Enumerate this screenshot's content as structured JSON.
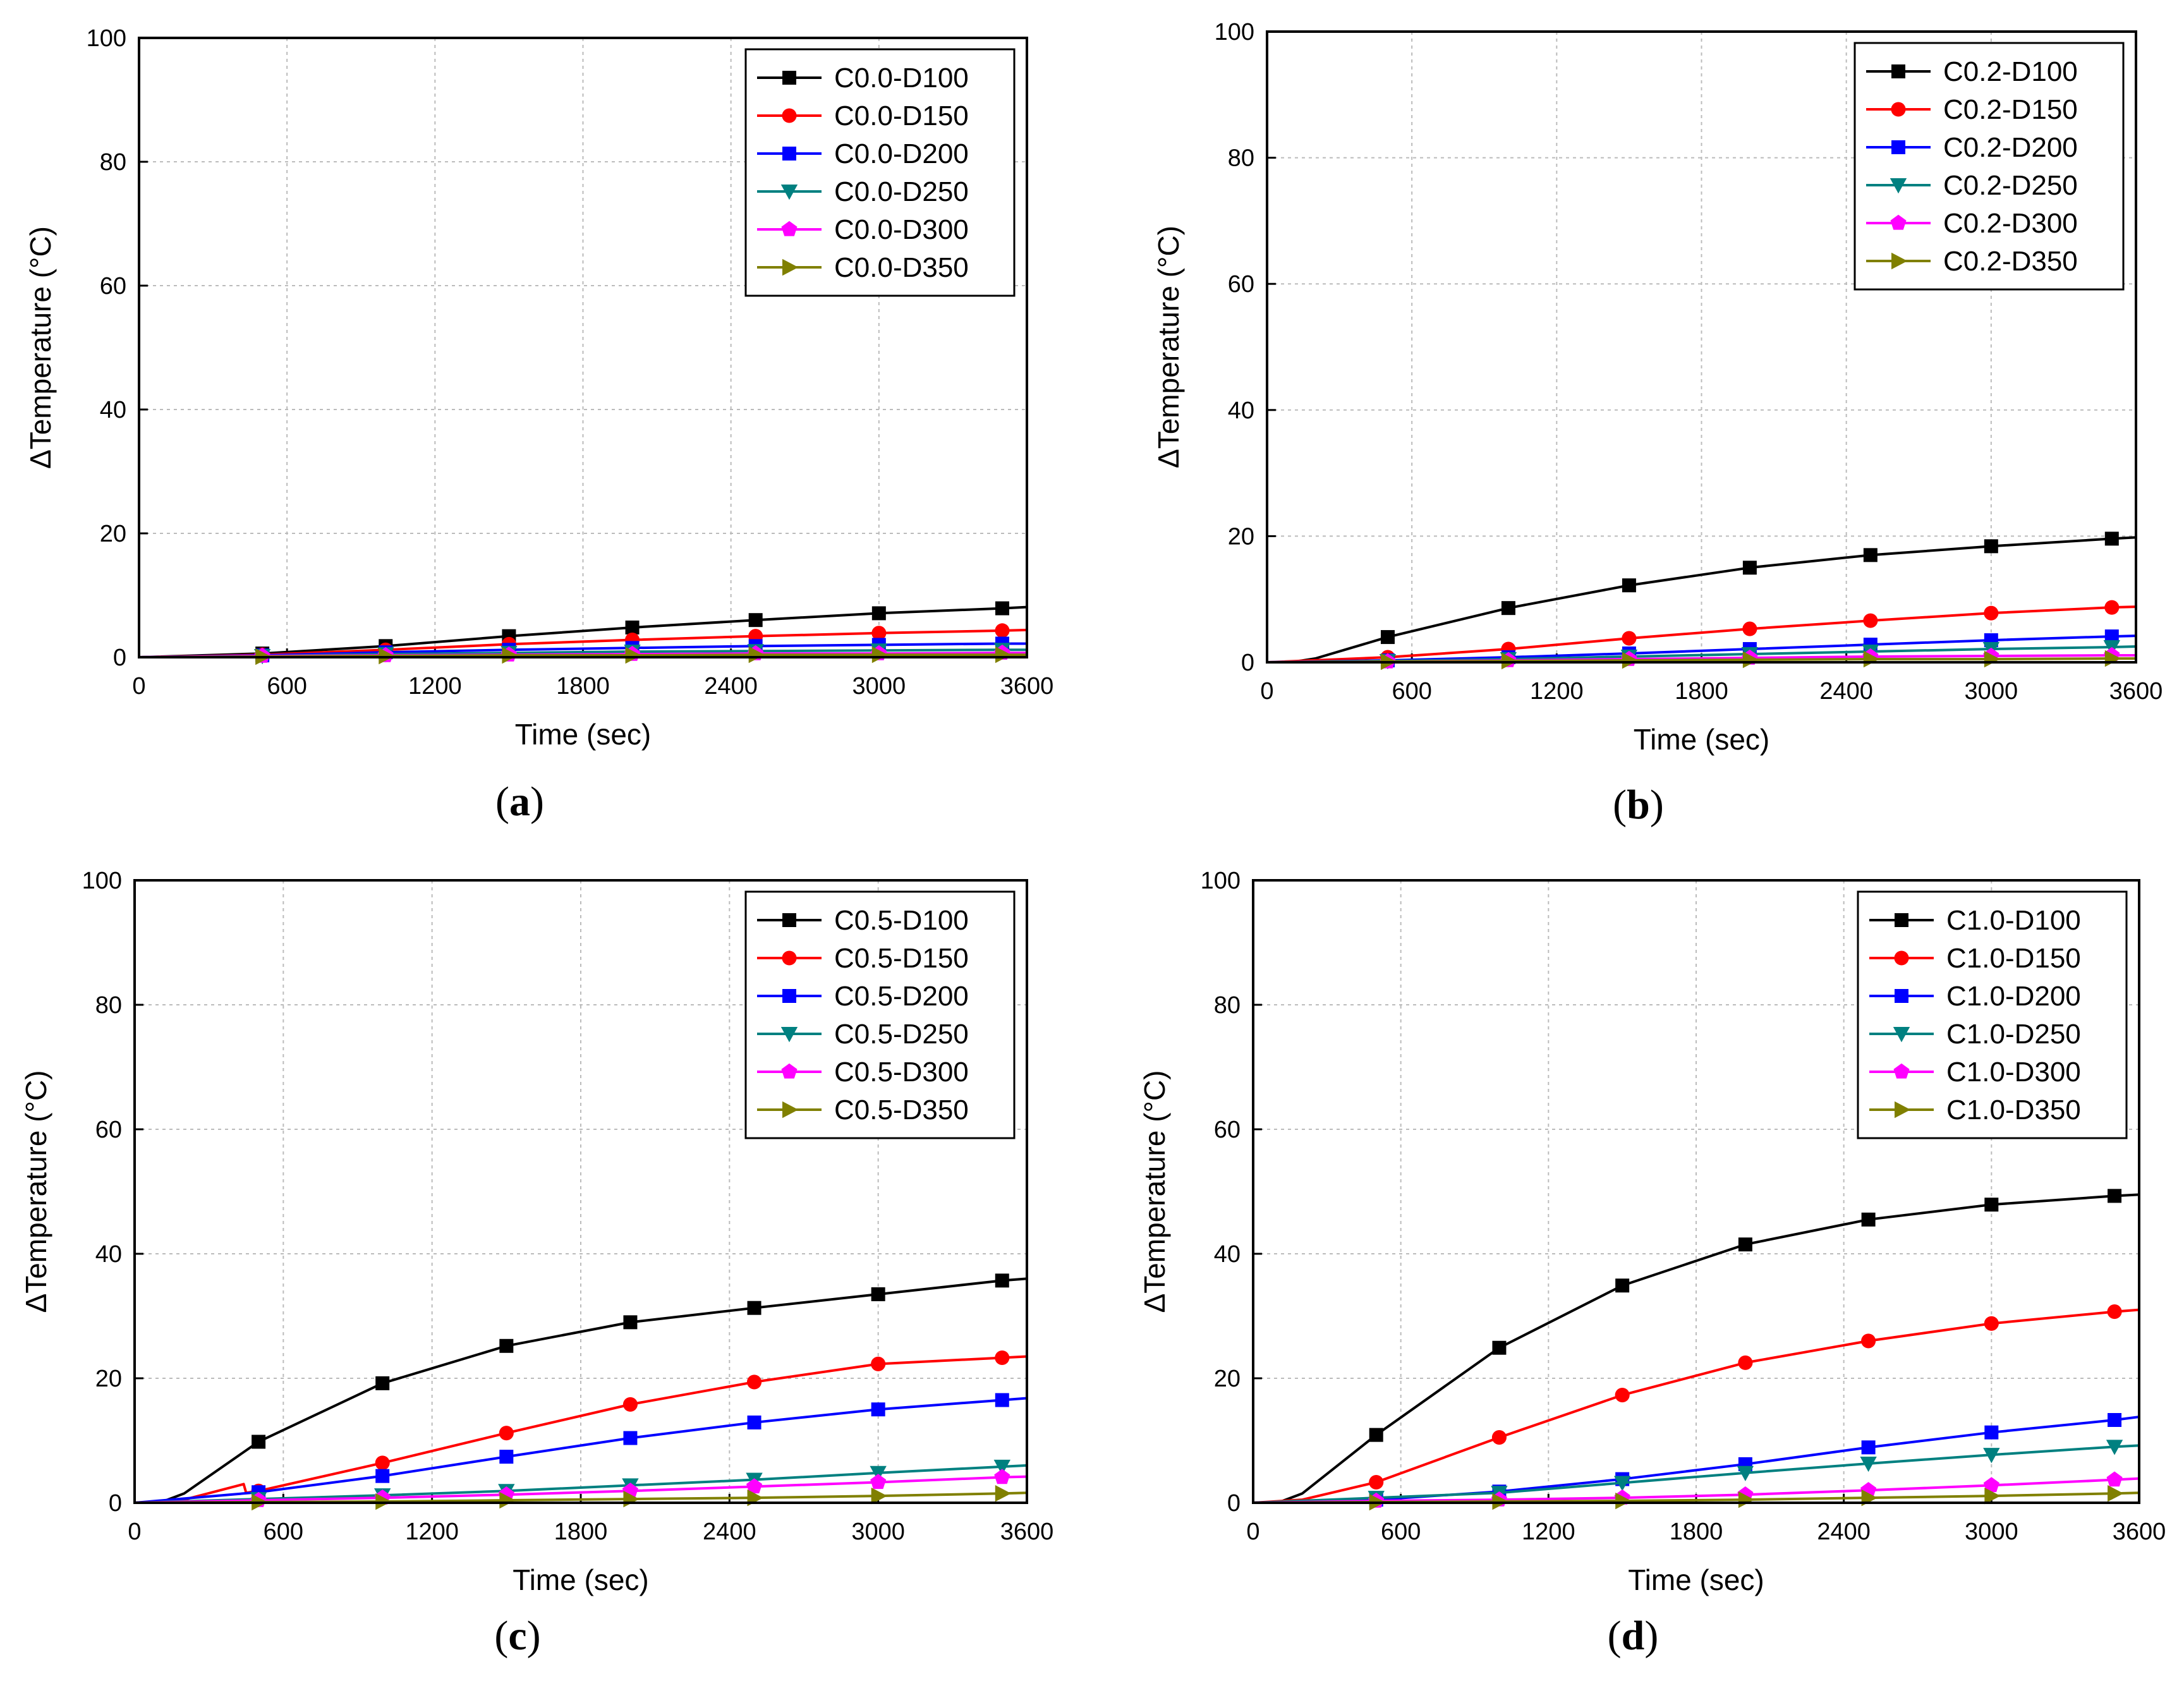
{
  "chart_data": [
    {
      "panel": "(a)",
      "panel_letter": "a",
      "type": "line",
      "xlabel": "Time (sec)",
      "ylabel": "ΔTemperature (°C)",
      "xlim": [
        0,
        3600
      ],
      "ylim": [
        0,
        100
      ],
      "xticks": [
        0,
        600,
        1200,
        1800,
        2400,
        3000,
        3600
      ],
      "yticks": [
        0,
        20,
        40,
        60,
        80,
        100
      ],
      "grid": true,
      "legend_position": "top-right",
      "series": [
        {
          "name": "C0.0-D100",
          "color": "#000000",
          "marker": "square",
          "x": [
            0,
            500,
            1000,
            1500,
            2000,
            2500,
            3000,
            3500,
            3600
          ],
          "y": [
            0,
            0.6,
            1.8,
            3.4,
            4.8,
            6.0,
            7.1,
            7.9,
            8.1
          ]
        },
        {
          "name": "C0.0-D150",
          "color": "#ff0000",
          "marker": "circle",
          "x": [
            0,
            500,
            1000,
            1500,
            2000,
            2500,
            3000,
            3500,
            3600
          ],
          "y": [
            0,
            0.4,
            1.2,
            2.1,
            2.8,
            3.4,
            3.9,
            4.3,
            4.4
          ]
        },
        {
          "name": "C0.0-D200",
          "color": "#0000ff",
          "marker": "square",
          "x": [
            0,
            500,
            1000,
            1500,
            2000,
            2500,
            3000,
            3500,
            3600
          ],
          "y": [
            0,
            0.3,
            0.8,
            1.2,
            1.5,
            1.8,
            2.0,
            2.2,
            2.2
          ]
        },
        {
          "name": "C0.0-D250",
          "color": "#008080",
          "marker": "triangle-down",
          "x": [
            0,
            500,
            1000,
            1500,
            2000,
            2500,
            3000,
            3500,
            3600
          ],
          "y": [
            0,
            0.2,
            0.5,
            0.7,
            0.9,
            1.0,
            1.1,
            1.2,
            1.2
          ]
        },
        {
          "name": "C0.0-D300",
          "color": "#ff00ff",
          "marker": "pentagon",
          "x": [
            0,
            500,
            1000,
            1500,
            2000,
            2500,
            3000,
            3500,
            3600
          ],
          "y": [
            0,
            0.2,
            0.3,
            0.4,
            0.5,
            0.6,
            0.6,
            0.7,
            0.7
          ]
        },
        {
          "name": "C0.0-D350",
          "color": "#808000",
          "marker": "triangle-right",
          "x": [
            0,
            500,
            1000,
            1500,
            2000,
            2500,
            3000,
            3500,
            3600
          ],
          "y": [
            0,
            0.1,
            0.2,
            0.3,
            0.3,
            0.4,
            0.4,
            0.4,
            0.4
          ]
        }
      ]
    },
    {
      "panel": "(b)",
      "panel_letter": "b",
      "type": "line",
      "xlabel": "Time (sec)",
      "ylabel": "ΔTemperature (°C)",
      "xlim": [
        0,
        3600
      ],
      "ylim": [
        0,
        100
      ],
      "xticks": [
        0,
        600,
        1200,
        1800,
        2400,
        3000,
        3600
      ],
      "yticks": [
        0,
        20,
        40,
        60,
        80,
        100
      ],
      "grid": true,
      "legend_position": "top-right",
      "series": [
        {
          "name": "C0.2-D100",
          "color": "#000000",
          "marker": "square",
          "x": [
            0,
            100,
            200,
            500,
            1000,
            1500,
            2000,
            2500,
            3000,
            3500,
            3600
          ],
          "y": [
            0,
            0,
            0.6,
            4.0,
            8.6,
            12.2,
            15.0,
            17.0,
            18.4,
            19.6,
            19.8
          ]
        },
        {
          "name": "C0.2-D150",
          "color": "#ff0000",
          "marker": "circle",
          "x": [
            0,
            500,
            1000,
            1500,
            2000,
            2500,
            3000,
            3500,
            3600
          ],
          "y": [
            0,
            0.8,
            2.1,
            3.8,
            5.3,
            6.6,
            7.8,
            8.7,
            8.8
          ]
        },
        {
          "name": "C0.2-D200",
          "color": "#0000ff",
          "marker": "square",
          "x": [
            0,
            500,
            1000,
            1500,
            2000,
            2500,
            3000,
            3500,
            3600
          ],
          "y": [
            0,
            0.3,
            0.8,
            1.4,
            2.1,
            2.8,
            3.5,
            4.1,
            4.2
          ]
        },
        {
          "name": "C0.2-D250",
          "color": "#008080",
          "marker": "triangle-down",
          "x": [
            0,
            500,
            1000,
            1500,
            2000,
            2500,
            3000,
            3500,
            3600
          ],
          "y": [
            0,
            0.2,
            0.5,
            0.9,
            1.3,
            1.7,
            2.1,
            2.4,
            2.5
          ]
        },
        {
          "name": "C0.2-D300",
          "color": "#ff00ff",
          "marker": "pentagon",
          "x": [
            0,
            500,
            1000,
            1500,
            2000,
            2500,
            3000,
            3500,
            3600
          ],
          "y": [
            0,
            0.1,
            0.3,
            0.5,
            0.7,
            0.9,
            1.0,
            1.1,
            1.1
          ]
        },
        {
          "name": "C0.2-D350",
          "color": "#808000",
          "marker": "triangle-right",
          "x": [
            0,
            500,
            1000,
            1500,
            2000,
            2500,
            3000,
            3500,
            3600
          ],
          "y": [
            0,
            0.1,
            0.2,
            0.3,
            0.4,
            0.5,
            0.5,
            0.6,
            0.6
          ]
        }
      ]
    },
    {
      "panel": "(c)",
      "panel_letter": "c",
      "type": "line",
      "xlabel": "Time (sec)",
      "ylabel": "ΔTemperature (°C)",
      "xlim": [
        0,
        3600
      ],
      "ylim": [
        0,
        100
      ],
      "xticks": [
        0,
        600,
        1200,
        1800,
        2400,
        3000,
        3600
      ],
      "yticks": [
        0,
        20,
        40,
        60,
        80,
        100
      ],
      "grid": true,
      "legend_position": "top-right",
      "series": [
        {
          "name": "C0.5-D100",
          "color": "#000000",
          "marker": "square",
          "x": [
            0,
            100,
            200,
            500,
            1000,
            1500,
            2000,
            2500,
            3000,
            3500,
            3600
          ],
          "y": [
            0,
            0,
            1.5,
            9.8,
            19.2,
            25.2,
            29.0,
            31.3,
            33.5,
            35.7,
            36.0
          ]
        },
        {
          "name": "C0.5-D150",
          "color": "#ff0000",
          "marker": "circle",
          "x": [
            0,
            200,
            440,
            450,
            500,
            1000,
            1500,
            2000,
            2500,
            3000,
            3500,
            3600
          ],
          "y": [
            0,
            0.5,
            3.0,
            1.6,
            1.9,
            6.4,
            11.2,
            15.8,
            19.4,
            22.3,
            23.3,
            23.5
          ]
        },
        {
          "name": "C0.5-D200",
          "color": "#0000ff",
          "marker": "square",
          "x": [
            0,
            500,
            1000,
            1500,
            2000,
            2500,
            3000,
            3500,
            3600
          ],
          "y": [
            0,
            1.7,
            4.3,
            7.4,
            10.4,
            12.9,
            15.0,
            16.5,
            16.8
          ]
        },
        {
          "name": "C0.5-D250",
          "color": "#008080",
          "marker": "triangle-down",
          "x": [
            0,
            500,
            1000,
            1500,
            2000,
            2500,
            3000,
            3500,
            3600
          ],
          "y": [
            0,
            0.6,
            1.2,
            1.9,
            2.8,
            3.7,
            4.8,
            5.8,
            6.0
          ]
        },
        {
          "name": "C0.5-D300",
          "color": "#ff00ff",
          "marker": "pentagon",
          "x": [
            0,
            500,
            1000,
            1500,
            2000,
            2500,
            3000,
            3500,
            3600
          ],
          "y": [
            0,
            0.4,
            0.8,
            1.3,
            1.9,
            2.6,
            3.3,
            4.1,
            4.2
          ]
        },
        {
          "name": "C0.5-D350",
          "color": "#808000",
          "marker": "triangle-right",
          "x": [
            0,
            500,
            1000,
            1500,
            2000,
            2500,
            3000,
            3500,
            3600
          ],
          "y": [
            0,
            0.1,
            0.2,
            0.4,
            0.6,
            0.8,
            1.1,
            1.5,
            1.6
          ]
        }
      ]
    },
    {
      "panel": "(d)",
      "panel_letter": "d",
      "type": "line",
      "xlabel": "Time (sec)",
      "ylabel": "ΔTemperature (°C)",
      "xlim": [
        0,
        3600
      ],
      "ylim": [
        0,
        100
      ],
      "xticks": [
        0,
        600,
        1200,
        1800,
        2400,
        3000,
        3600
      ],
      "yticks": [
        0,
        20,
        40,
        60,
        80,
        100
      ],
      "grid": true,
      "legend_position": "top-right",
      "series": [
        {
          "name": "C1.0-D100",
          "color": "#000000",
          "marker": "square",
          "x": [
            0,
            100,
            200,
            500,
            1000,
            1500,
            2000,
            2500,
            3000,
            3500,
            3600
          ],
          "y": [
            0,
            0,
            1.5,
            10.9,
            24.9,
            34.9,
            41.5,
            45.5,
            47.9,
            49.3,
            49.5
          ]
        },
        {
          "name": "C1.0-D150",
          "color": "#ff0000",
          "marker": "circle",
          "x": [
            0,
            200,
            500,
            1000,
            1500,
            2000,
            2500,
            3000,
            3500,
            3600
          ],
          "y": [
            0,
            0.5,
            3.3,
            10.5,
            17.3,
            22.5,
            26.0,
            28.8,
            30.7,
            31.0
          ]
        },
        {
          "name": "C1.0-D200",
          "color": "#0000ff",
          "marker": "square",
          "x": [
            0,
            500,
            1000,
            1500,
            2000,
            2500,
            3000,
            3500,
            3600
          ],
          "y": [
            0,
            0.5,
            1.8,
            3.8,
            6.2,
            8.9,
            11.3,
            13.3,
            13.8
          ]
        },
        {
          "name": "C1.0-D250",
          "color": "#008080",
          "marker": "triangle-down",
          "x": [
            0,
            500,
            1000,
            1500,
            2000,
            2500,
            3000,
            3500,
            3600
          ],
          "y": [
            0,
            0.8,
            1.6,
            3.2,
            4.8,
            6.3,
            7.7,
            9.0,
            9.2
          ]
        },
        {
          "name": "C1.0-D300",
          "color": "#ff00ff",
          "marker": "pentagon",
          "x": [
            0,
            500,
            1000,
            1500,
            2000,
            2500,
            3000,
            3500,
            3600
          ],
          "y": [
            0,
            0.3,
            0.5,
            0.8,
            1.3,
            2.0,
            2.8,
            3.7,
            3.9
          ]
        },
        {
          "name": "C1.0-D350",
          "color": "#808000",
          "marker": "triangle-right",
          "x": [
            0,
            500,
            1000,
            1500,
            2000,
            2500,
            3000,
            3500,
            3600
          ],
          "y": [
            0,
            0.1,
            0.2,
            0.3,
            0.5,
            0.8,
            1.1,
            1.5,
            1.6
          ]
        }
      ]
    }
  ]
}
